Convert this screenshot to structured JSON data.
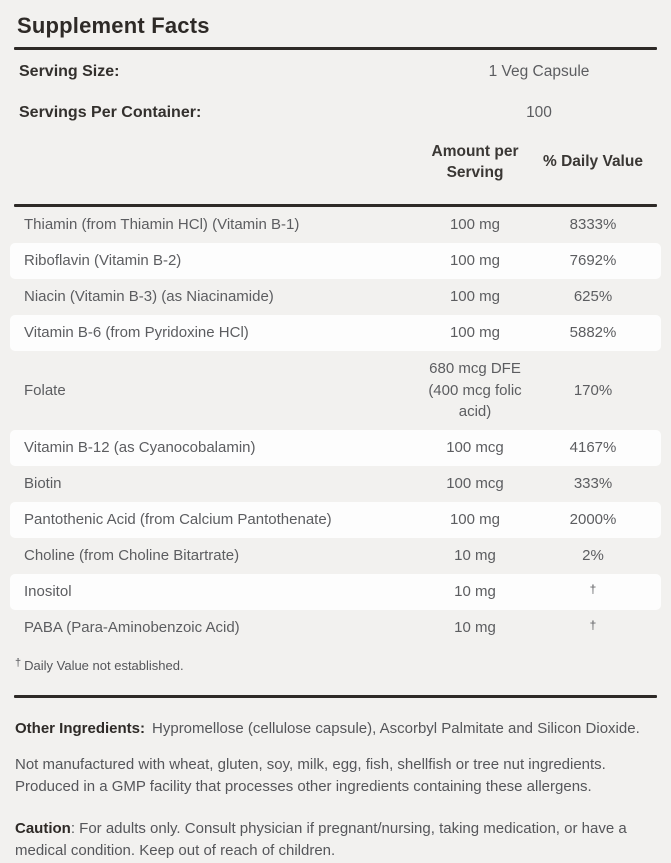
{
  "title": "Supplement Facts",
  "serving": {
    "size_label": "Serving Size:",
    "size_value": "1 Veg Capsule",
    "per_container_label": "Servings Per Container:",
    "per_container_value": "100"
  },
  "table": {
    "columns": {
      "amount": "Amount per Serving",
      "daily_value": "% Daily Value"
    },
    "rows": [
      {
        "name": "Thiamin (from Thiamin HCl) (Vitamin B-1)",
        "amount": "100 mg",
        "dv": "8333%"
      },
      {
        "name": "Riboflavin (Vitamin B-2)",
        "amount": "100 mg",
        "dv": "7692%"
      },
      {
        "name": "Niacin (Vitamin B-3) (as Niacinamide)",
        "amount": "100 mg",
        "dv": "625%"
      },
      {
        "name": "Vitamin B-6 (from Pyridoxine HCl)",
        "amount": "100 mg",
        "dv": "5882%"
      },
      {
        "name": "Folate",
        "amount": "680 mcg DFE\n(400 mcg folic\nacid)",
        "dv": "170%"
      },
      {
        "name": "Vitamin B-12 (as Cyanocobalamin)",
        "amount": "100 mcg",
        "dv": "4167%"
      },
      {
        "name": "Biotin",
        "amount": "100 mcg",
        "dv": "333%"
      },
      {
        "name": "Pantothenic Acid (from Calcium Pantothenate)",
        "amount": "100 mg",
        "dv": "2000%"
      },
      {
        "name": "Choline (from Choline Bitartrate)",
        "amount": "10 mg",
        "dv": "2%"
      },
      {
        "name": "Inositol",
        "amount": "10 mg",
        "dv": "†"
      },
      {
        "name": "PABA (Para-Aminobenzoic Acid)",
        "amount": "10 mg",
        "dv": "†"
      }
    ],
    "footnote_symbol": "†",
    "footnote_text": "Daily Value not established."
  },
  "notes": {
    "other_ingredients_label": "Other Ingredients:",
    "other_ingredients_text": "Hypromellose (cellulose capsule), Ascorbyl Palmitate and Silicon Dioxide.",
    "allergen_text": "Not manufactured with wheat, gluten, soy, milk, egg, fish, shellfish or tree nut ingredients. Produced in a GMP facility that processes other ingredients containing these allergens.",
    "caution_label": "Caution",
    "caution_text": ": For adults only. Consult physician if pregnant/nursing, taking medication, or have a medical condition. Keep out of reach of children."
  },
  "colors": {
    "page_background": "#f2f1ef",
    "row_highlight": "#fdfdfd",
    "dark_text": "#2e2a27",
    "body_text": "#5c5d60",
    "rule": "#2e2a27"
  }
}
